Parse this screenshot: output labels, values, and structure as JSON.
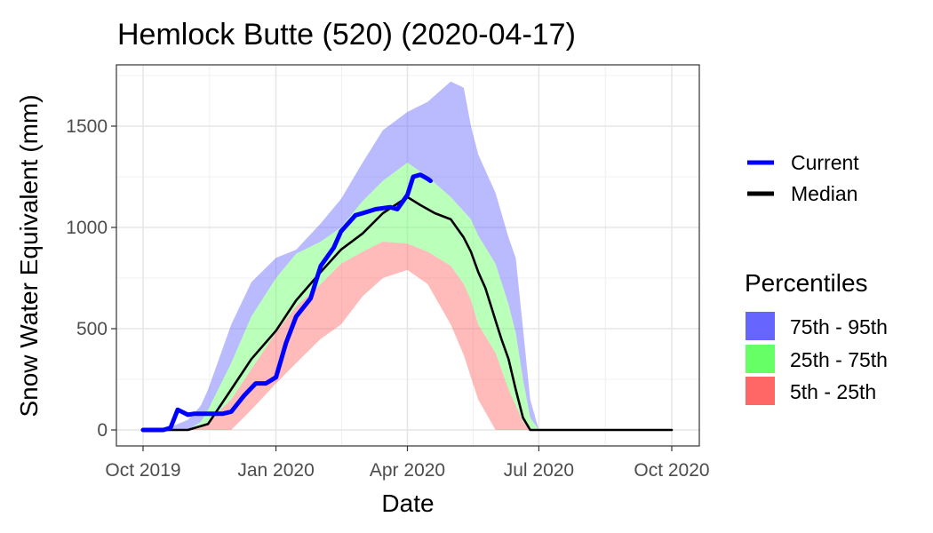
{
  "chart_data": {
    "type": "area",
    "title": "Hemlock Butte (520) (2020-04-17)",
    "xlabel": "Date",
    "ylabel": "Snow Water Equivalent (mm)",
    "xlim": [
      "2019-10-01",
      "2020-10-01"
    ],
    "ylim": [
      -80,
      1800
    ],
    "x_ticks": [
      {
        "date": "2019-10-01",
        "label": "Oct 2019"
      },
      {
        "date": "2020-01-01",
        "label": "Jan 2020"
      },
      {
        "date": "2020-04-01",
        "label": "Apr 2020"
      },
      {
        "date": "2020-07-01",
        "label": "Jul 2020"
      },
      {
        "date": "2020-10-01",
        "label": "Oct 2020"
      }
    ],
    "y_ticks": [
      0,
      500,
      1000,
      1500
    ],
    "grid": true,
    "legend_position": "right",
    "lines_legend": [
      {
        "name": "Current",
        "color": "#0000ff"
      },
      {
        "name": "Median",
        "color": "#000000"
      }
    ],
    "percentiles_title": "Percentiles",
    "percentile_legend": [
      {
        "name": "75th - 95th",
        "color": "#6666ff"
      },
      {
        "name": "25th - 75th",
        "color": "#66ff66"
      },
      {
        "name": "5th - 25th",
        "color": "#ff6666"
      }
    ],
    "bands": {
      "dates": [
        "2019-10-01",
        "2019-10-15",
        "2019-11-01",
        "2019-11-10",
        "2019-11-15",
        "2019-12-01",
        "2019-12-15",
        "2020-01-01",
        "2020-01-15",
        "2020-02-01",
        "2020-02-15",
        "2020-03-01",
        "2020-03-15",
        "2020-04-01",
        "2020-04-15",
        "2020-05-01",
        "2020-05-10",
        "2020-05-15",
        "2020-05-20",
        "2020-06-01",
        "2020-06-10",
        "2020-06-15",
        "2020-06-20",
        "2020-06-25",
        "2020-07-01",
        "2020-10-01"
      ],
      "p5": [
        0,
        0,
        0,
        0,
        0,
        0,
        100,
        230,
        330,
        450,
        520,
        660,
        750,
        790,
        720,
        520,
        370,
        260,
        150,
        0,
        0,
        0,
        0,
        0,
        0,
        0
      ],
      "p25": [
        0,
        0,
        0,
        10,
        40,
        150,
        300,
        480,
        610,
        720,
        820,
        880,
        930,
        920,
        880,
        810,
        720,
        640,
        520,
        380,
        200,
        120,
        40,
        0,
        0,
        0
      ],
      "p75": [
        0,
        0,
        0,
        40,
        100,
        330,
        560,
        750,
        870,
        930,
        1000,
        1130,
        1230,
        1320,
        1250,
        1150,
        1080,
        1040,
        960,
        820,
        620,
        480,
        250,
        60,
        0,
        0
      ],
      "p95": [
        0,
        0,
        50,
        120,
        200,
        520,
        730,
        850,
        890,
        1020,
        1140,
        1320,
        1480,
        1570,
        1620,
        1720,
        1690,
        1500,
        1360,
        1170,
        950,
        850,
        500,
        150,
        0,
        0
      ]
    },
    "series": [
      {
        "name": "Median",
        "color": "#000000",
        "dates": [
          "2019-10-01",
          "2019-10-10",
          "2019-10-20",
          "2019-11-01",
          "2019-11-15",
          "2019-12-01",
          "2019-12-15",
          "2020-01-01",
          "2020-01-15",
          "2020-02-01",
          "2020-02-15",
          "2020-03-01",
          "2020-03-15",
          "2020-04-01",
          "2020-04-10",
          "2020-04-20",
          "2020-05-01",
          "2020-05-10",
          "2020-05-15",
          "2020-05-20",
          "2020-05-25",
          "2020-06-01",
          "2020-06-05",
          "2020-06-10",
          "2020-06-15",
          "2020-06-20",
          "2020-06-25",
          "2020-07-01",
          "2020-10-01"
        ],
        "values": [
          0,
          0,
          0,
          0,
          30,
          200,
          350,
          490,
          640,
          780,
          890,
          970,
          1070,
          1150,
          1110,
          1070,
          1040,
          950,
          880,
          780,
          700,
          540,
          450,
          350,
          200,
          60,
          0,
          0,
          0
        ]
      },
      {
        "name": "Current",
        "color": "#0000ff",
        "dates": [
          "2019-10-01",
          "2019-10-15",
          "2019-10-20",
          "2019-10-25",
          "2019-11-01",
          "2019-11-05",
          "2019-11-15",
          "2019-11-25",
          "2019-12-01",
          "2019-12-10",
          "2019-12-18",
          "2019-12-25",
          "2020-01-01",
          "2020-01-08",
          "2020-01-15",
          "2020-01-25",
          "2020-02-01",
          "2020-02-10",
          "2020-02-15",
          "2020-02-25",
          "2020-03-01",
          "2020-03-10",
          "2020-03-20",
          "2020-03-25",
          "2020-04-01",
          "2020-04-05",
          "2020-04-10",
          "2020-04-15",
          "2020-04-17"
        ],
        "values": [
          0,
          0,
          10,
          100,
          75,
          80,
          80,
          80,
          90,
          170,
          230,
          230,
          260,
          430,
          560,
          650,
          810,
          900,
          980,
          1060,
          1070,
          1090,
          1100,
          1090,
          1160,
          1250,
          1260,
          1240,
          1230
        ]
      }
    ]
  }
}
